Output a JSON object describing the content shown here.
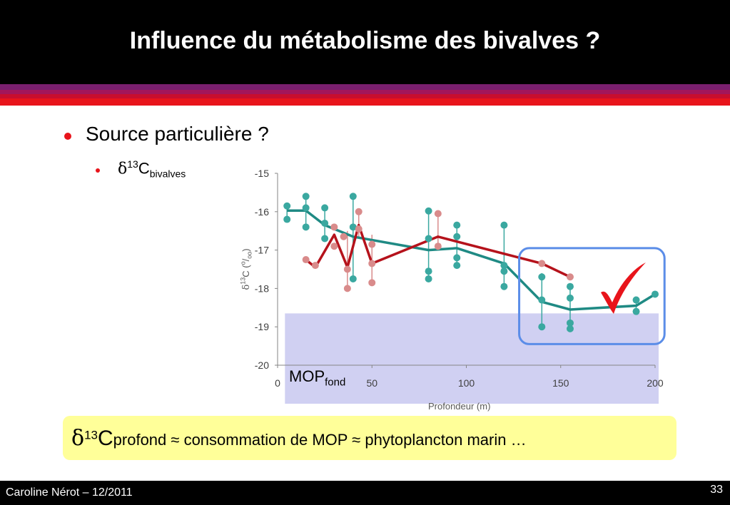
{
  "slide": {
    "title": "Influence du métabolisme des bivalves ?",
    "bullet1": "Source particulière ?",
    "bullet2_delta": "δ",
    "bullet2_sup": "13",
    "bullet2_main": "C",
    "bullet2_sub": "bivalves",
    "mop_label": "MOP",
    "mop_sub": "fond",
    "conclusion_delta": "δ",
    "conclusion_sup": "13",
    "conclusion_c": "C",
    "conclusion_rest": "profond ≈ consommation de MOP ≈ phytoplancton marin …",
    "footer_author": "Caroline Nérot – 12/2011",
    "page_number": "33",
    "check_icon": "checkmark-icon"
  },
  "colors": {
    "header": "#000000",
    "stripe1": "#7a1f6e",
    "stripe2": "#a3165a",
    "stripe3": "#c80e2e",
    "stripe4": "#e8141b",
    "teal": "#1f8a84",
    "teal_point": "#3aa8a0",
    "red_line": "#b5121b",
    "red_point": "#d98b8b",
    "highlight_box": "#5b8de8",
    "check": "#e8141b",
    "mop_band": "#c8c8f0",
    "conclusion_bg": "#ffff99"
  },
  "chart_data": {
    "type": "line",
    "xlabel": "Profondeur (m)",
    "ylabel_delta": "δ",
    "ylabel_sup": "13",
    "ylabel_main": "C (",
    "ylabel_unit_sup": "o",
    "ylabel_unit_sub": "oo",
    "ylabel_close": ")",
    "xlim": [
      0,
      200
    ],
    "ylim": [
      -20,
      -15
    ],
    "xticks": [
      "0",
      "50",
      "100",
      "150",
      "200"
    ],
    "yticks": [
      "-15",
      "-16",
      "-17",
      "-18",
      "-19",
      "-20"
    ],
    "xtick_values": [
      0,
      50,
      100,
      150,
      200
    ],
    "ytick_values": [
      -15,
      -16,
      -17,
      -18,
      -19,
      -20
    ],
    "series": [
      {
        "color": "teal",
        "line": [
          [
            5,
            -15.97
          ],
          [
            15,
            -15.97
          ],
          [
            25,
            -16.35
          ],
          [
            40,
            -16.65
          ],
          [
            80,
            -17.0
          ],
          [
            95,
            -16.95
          ],
          [
            120,
            -17.35
          ],
          [
            140,
            -18.35
          ],
          [
            155,
            -18.55
          ],
          [
            190,
            -18.45
          ],
          [
            200,
            -18.15
          ]
        ],
        "points": [
          [
            5,
            -15.85
          ],
          [
            5,
            -16.2
          ],
          [
            15,
            -15.6
          ],
          [
            15,
            -15.9
          ],
          [
            15,
            -16.4
          ],
          [
            25,
            -15.9
          ],
          [
            25,
            -16.3
          ],
          [
            25,
            -16.7
          ],
          [
            40,
            -15.6
          ],
          [
            40,
            -16.4
          ],
          [
            40,
            -17.75
          ],
          [
            80,
            -15.98
          ],
          [
            80,
            -16.7
          ],
          [
            80,
            -17.55
          ],
          [
            80,
            -17.75
          ],
          [
            95,
            -16.35
          ],
          [
            95,
            -16.65
          ],
          [
            95,
            -17.2
          ],
          [
            95,
            -17.4
          ],
          [
            120,
            -16.35
          ],
          [
            120,
            -17.4
          ],
          [
            120,
            -17.55
          ],
          [
            120,
            -17.95
          ],
          [
            140,
            -17.7
          ],
          [
            140,
            -18.3
          ],
          [
            140,
            -19.0
          ],
          [
            155,
            -17.95
          ],
          [
            155,
            -18.25
          ],
          [
            155,
            -18.9
          ],
          [
            155,
            -19.05
          ],
          [
            190,
            -18.3
          ],
          [
            190,
            -18.6
          ],
          [
            200,
            -18.15
          ]
        ],
        "error_bars": [
          [
            5,
            -15.8,
            -16.25
          ],
          [
            15,
            -15.55,
            -16.4
          ],
          [
            25,
            -15.85,
            -16.75
          ],
          [
            40,
            -15.55,
            -17.8
          ],
          [
            80,
            -15.95,
            -17.8
          ],
          [
            95,
            -16.3,
            -17.45
          ],
          [
            120,
            -16.3,
            -18.0
          ],
          [
            140,
            -17.6,
            -19.05
          ],
          [
            155,
            -17.9,
            -19.1
          ],
          [
            190,
            -18.25,
            -18.65
          ]
        ]
      },
      {
        "color": "red",
        "line": [
          [
            15,
            -17.25
          ],
          [
            20,
            -17.45
          ],
          [
            30,
            -16.6
          ],
          [
            37,
            -17.45
          ],
          [
            43,
            -16.35
          ],
          [
            50,
            -17.35
          ],
          [
            85,
            -16.65
          ],
          [
            140,
            -17.35
          ],
          [
            155,
            -17.7
          ]
        ],
        "points": [
          [
            15,
            -17.25
          ],
          [
            20,
            -17.4
          ],
          [
            30,
            -16.4
          ],
          [
            30,
            -16.9
          ],
          [
            35,
            -16.65
          ],
          [
            37,
            -17.5
          ],
          [
            37,
            -18.0
          ],
          [
            43,
            -16.0
          ],
          [
            43,
            -16.45
          ],
          [
            50,
            -16.85
          ],
          [
            50,
            -17.35
          ],
          [
            50,
            -17.85
          ],
          [
            85,
            -16.05
          ],
          [
            85,
            -16.9
          ],
          [
            140,
            -17.35
          ],
          [
            155,
            -17.7
          ]
        ],
        "error_bars": [
          [
            37,
            -16.5,
            -18.05
          ],
          [
            43,
            -15.95,
            -16.7
          ],
          [
            50,
            -16.6,
            -17.9
          ],
          [
            85,
            -16.0,
            -16.95
          ]
        ]
      }
    ],
    "mop_band": {
      "x": [
        2,
        200
      ],
      "y": [
        -18.65,
        -20
      ]
    },
    "highlight_box": {
      "x": [
        128,
        205
      ],
      "y": [
        -16.95,
        -19.45
      ]
    }
  }
}
